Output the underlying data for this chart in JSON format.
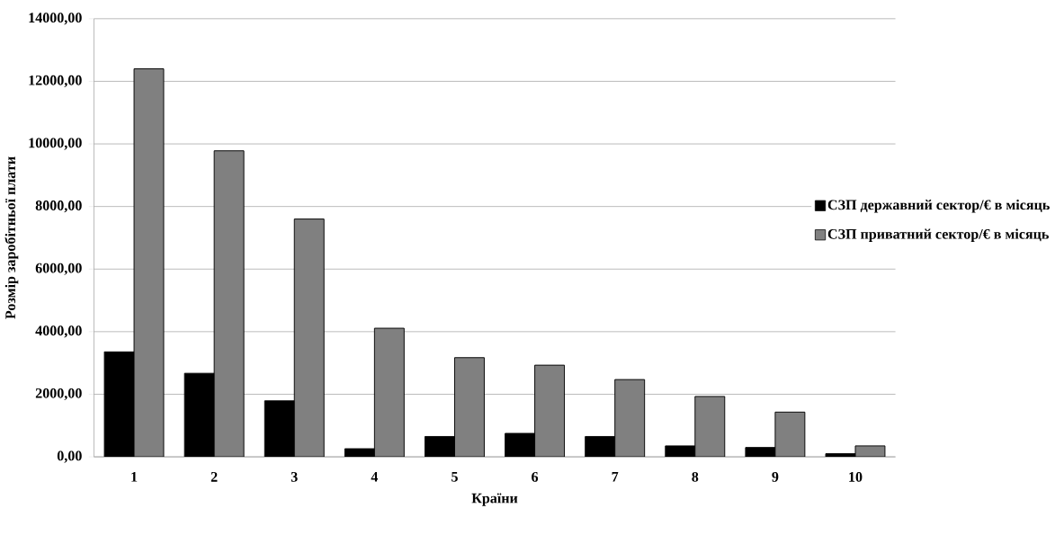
{
  "chart_data": {
    "type": "bar",
    "xlabel": "Країни",
    "ylabel": "Розмір заробітньої плати",
    "categories": [
      "1",
      "2",
      "3",
      "4",
      "5",
      "6",
      "7",
      "8",
      "9",
      "10"
    ],
    "series": [
      {
        "name": "СЗП державний сектор/€ в місяць",
        "color": "#000000",
        "values": [
          3360,
          2670,
          1790,
          260,
          650,
          750,
          650,
          350,
          300,
          100
        ]
      },
      {
        "name": "СЗП приватний сектор/€ в місяць",
        "color": "#808080",
        "values": [
          12400,
          9780,
          7600,
          4110,
          3170,
          2930,
          2470,
          1930,
          1430,
          350
        ]
      }
    ],
    "ylim": [
      0,
      14000
    ],
    "yticks": [
      {
        "value": 0,
        "label": "0,00"
      },
      {
        "value": 2000,
        "label": "2000,00"
      },
      {
        "value": 4000,
        "label": "4000,00"
      },
      {
        "value": 6000,
        "label": "6000,00"
      },
      {
        "value": 8000,
        "label": "8000,00"
      },
      {
        "value": 10000,
        "label": "10000,00"
      },
      {
        "value": 12000,
        "label": "12000,00"
      },
      {
        "value": 14000,
        "label": "14000,00"
      }
    ],
    "grid": "y",
    "legend": "right"
  }
}
